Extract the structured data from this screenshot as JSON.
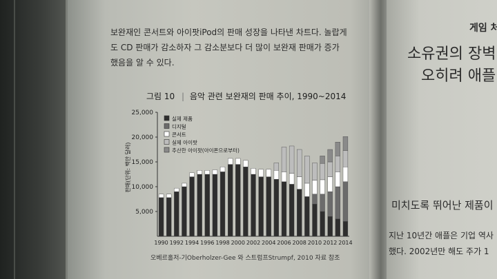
{
  "paragraph": {
    "lines": [
      "보완재인 콘서트와 아이팟iPod의 판매 성장을 나타낸 차트다. 놀랍게",
      "도 CD 판매가 감소하자 그 감소분보다 더 많이 보완재 판매가 증가",
      "했음을 알 수 있다."
    ]
  },
  "figure": {
    "label": "그림 10",
    "title": "음악 관련 보완재의 판매 추이, 1990~2014",
    "source": "오베르홀저-기Oberholzer-Gee 와 스트럼프Strumpf, 2010 자료 참조"
  },
  "right_page": {
    "lines": [
      "게임 처",
      "소유권의 장벽",
      "오히려 애플",
      "미치도록 뛰어난 제품이",
      "지난 10년간 애플은 기업 역사",
      "했다. 2002년만 해도 주가 1"
    ]
  },
  "chart_data": {
    "type": "bar",
    "stacked": true,
    "ylabel": "판매(단위: 백만 달러)",
    "ylim": [
      0,
      25000
    ],
    "yticks": [
      5000,
      10000,
      15000,
      20000,
      25000
    ],
    "ytick_labels": [
      "5,000",
      "10,000",
      "15,000",
      "20,000",
      "25,000"
    ],
    "grid": false,
    "legend_position": "top-left",
    "x": [
      1990,
      1991,
      1992,
      1993,
      1994,
      1995,
      1996,
      1997,
      1998,
      1999,
      2000,
      2001,
      2002,
      2003,
      2004,
      2005,
      2006,
      2007,
      2008,
      2009,
      2010,
      2011,
      2012,
      2013,
      2014
    ],
    "xtick_labels": [
      "1990",
      "1992",
      "1994",
      "1996",
      "1998",
      "2000",
      "2002",
      "2004",
      "2006",
      "2008",
      "2010",
      "2012",
      "2014"
    ],
    "series": [
      {
        "name": "실제 제품",
        "color": "#2e2e2e",
        "values": [
          7800,
          7800,
          9000,
          10000,
          12000,
          12500,
          12500,
          12500,
          13000,
          14500,
          14500,
          14000,
          12500,
          12000,
          12000,
          11500,
          11000,
          10500,
          9500,
          8000,
          6500,
          5000,
          4000,
          3500,
          3000
        ]
      },
      {
        "name": "디지털",
        "color": "#6b6b6b",
        "values": [
          0,
          0,
          0,
          0,
          0,
          0,
          0,
          0,
          0,
          0,
          0,
          0,
          0,
          0,
          0,
          0,
          0,
          0,
          0,
          0,
          2000,
          3500,
          5000,
          6500,
          8000
        ]
      },
      {
        "name": "콘서트",
        "color": "#ffffff",
        "values": [
          700,
          700,
          700,
          700,
          800,
          800,
          800,
          900,
          1000,
          1200,
          1200,
          1300,
          1200,
          1500,
          1500,
          1800,
          2000,
          2200,
          2500,
          2700,
          2800,
          2900,
          3000,
          3000,
          3000
        ]
      },
      {
        "name": "실제 아이팟",
        "color": "#bdbdbd",
        "values": [
          0,
          0,
          0,
          0,
          0,
          0,
          0,
          0,
          0,
          0,
          0,
          0,
          0,
          0,
          0,
          1500,
          5000,
          5500,
          5500,
          5500,
          3500,
          3300,
          3000,
          3200,
          3300
        ]
      },
      {
        "name": "추산한 아이팟(아이폰으로부터)",
        "color": "#8a8a8a",
        "values": [
          0,
          0,
          0,
          0,
          0,
          0,
          0,
          0,
          0,
          0,
          0,
          0,
          0,
          0,
          0,
          0,
          0,
          0,
          0,
          0,
          0,
          1500,
          2500,
          2800,
          2800
        ]
      }
    ]
  }
}
